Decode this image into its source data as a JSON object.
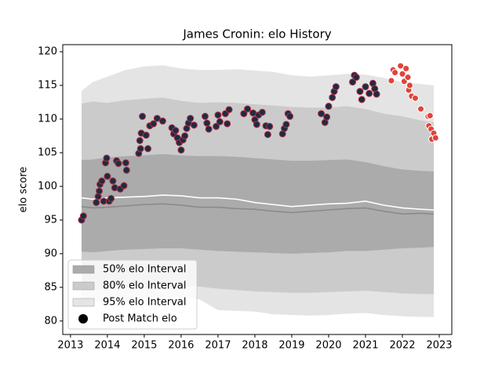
{
  "chart_data": {
    "type": "scatter",
    "title": "James Cronin: elo History",
    "ylabel": "elo score",
    "xlim": [
      2012.79,
      2023.34
    ],
    "ylim": [
      78.0,
      121.05
    ],
    "xticks": [
      2013,
      2014,
      2015,
      2016,
      2017,
      2018,
      2019,
      2020,
      2021,
      2022,
      2023
    ],
    "yticks": [
      80,
      85,
      90,
      95,
      100,
      105,
      110,
      115,
      120
    ],
    "legend": "lower left",
    "band_x": [
      2013.3,
      2013.6,
      2014,
      2014.5,
      2015,
      2015.5,
      2016,
      2016.5,
      2017,
      2017.5,
      2018,
      2018.5,
      2019,
      2019.5,
      2020,
      2020.5,
      2021,
      2021.5,
      2022,
      2022.5,
      2022.85
    ],
    "bands": [
      {
        "name": "50% elo Interval",
        "color": "#ababab",
        "upper": [
          103.9,
          104.0,
          104.3,
          104.5,
          104.6,
          104.8,
          104.6,
          104.5,
          104.5,
          104.4,
          104.2,
          104.0,
          103.8,
          103.8,
          103.9,
          104.0,
          103.6,
          103.0,
          102.5,
          102.3,
          102.2
        ],
        "lower": [
          90.3,
          90.2,
          90.4,
          90.6,
          90.7,
          90.8,
          90.8,
          90.6,
          90.4,
          90.3,
          90.2,
          90.1,
          90.0,
          90.1,
          90.2,
          90.4,
          90.4,
          90.6,
          90.8,
          90.9,
          91.0
        ]
      },
      {
        "name": "80% elo Interval",
        "color": "#cbcbcb",
        "upper": [
          112.3,
          112.6,
          112.4,
          112.8,
          113.0,
          113.2,
          112.7,
          112.4,
          112.5,
          112.4,
          112.2,
          112.0,
          111.8,
          111.7,
          111.7,
          111.9,
          111.5,
          110.8,
          110.4,
          109.8,
          109.5
        ],
        "lower": [
          84.6,
          84.6,
          84.8,
          85.0,
          85.1,
          85.3,
          85.2,
          85.1,
          84.8,
          84.6,
          84.4,
          84.3,
          84.2,
          84.2,
          84.3,
          84.4,
          84.5,
          84.3,
          84.1,
          84.0,
          84.0
        ]
      },
      {
        "name": "95% elo Interval",
        "color": "#e4e4e4",
        "upper": [
          114.2,
          115.5,
          116.3,
          117.3,
          117.8,
          118.0,
          117.5,
          117.3,
          117.3,
          117.4,
          117.2,
          117.0,
          116.5,
          116.3,
          116.5,
          116.7,
          116.6,
          116.1,
          115.5,
          115.2,
          115.0
        ],
        "lower": [
          83.1,
          82.8,
          82.9,
          83.2,
          83.4,
          83.6,
          83.6,
          83.2,
          81.6,
          81.5,
          81.4,
          81.0,
          80.9,
          80.8,
          80.9,
          81.1,
          81.2,
          80.9,
          80.7,
          80.6,
          80.6
        ]
      }
    ],
    "lines": [
      {
        "color": "#ffffff",
        "values": [
          98.3,
          98.1,
          98.3,
          98.4,
          98.5,
          98.7,
          98.6,
          98.3,
          98.3,
          98.1,
          97.6,
          97.3,
          97.0,
          97.2,
          97.4,
          97.5,
          97.8,
          97.2,
          96.8,
          96.6,
          96.5
        ]
      },
      {
        "color": "#8a8a8a",
        "values": [
          97.0,
          96.8,
          96.9,
          97.1,
          97.3,
          97.4,
          97.2,
          96.9,
          96.9,
          96.7,
          96.6,
          96.3,
          96.1,
          96.3,
          96.5,
          96.7,
          96.8,
          96.3,
          95.9,
          96.0,
          95.9
        ]
      }
    ],
    "series": [
      {
        "name": "Post Match elo",
        "color": "#1f2b44",
        "edge": "#b03040",
        "legend_color": "#000000",
        "x": [
          2013.3,
          2013.35,
          2013.7,
          2013.75,
          2013.78,
          2013.8,
          2013.85,
          2013.9,
          2013.95,
          2013.98,
          2014.0,
          2014.05,
          2014.1,
          2014.15,
          2014.2,
          2014.25,
          2014.3,
          2014.35,
          2014.45,
          2014.5,
          2014.52,
          2014.85,
          2014.9,
          2014.88,
          2014.92,
          2014.95,
          2015.05,
          2015.1,
          2015.15,
          2015.25,
          2015.35,
          2015.5,
          2015.75,
          2015.8,
          2015.85,
          2015.9,
          2015.95,
          2016.0,
          2016.05,
          2016.1,
          2016.15,
          2016.2,
          2016.25,
          2016.35,
          2016.65,
          2016.7,
          2016.75,
          2016.95,
          2017.0,
          2017.05,
          2017.2,
          2017.25,
          2017.3,
          2017.7,
          2017.8,
          2017.95,
          2018.0,
          2018.05,
          2018.1,
          2018.2,
          2018.3,
          2018.35,
          2018.4,
          2018.75,
          2018.8,
          2018.85,
          2018.9,
          2018.95,
          2019.8,
          2019.9,
          2019.95,
          2020.0,
          2020.1,
          2020.15,
          2020.2,
          2020.65,
          2020.7,
          2020.75,
          2020.85,
          2020.9,
          2021.0,
          2021.1,
          2021.2,
          2021.25,
          2021.3
        ],
        "values": [
          95.0,
          95.6,
          97.6,
          98.5,
          99.3,
          100.3,
          100.8,
          97.8,
          103.5,
          104.2,
          101.5,
          97.8,
          98.2,
          100.8,
          99.8,
          103.8,
          103.4,
          99.6,
          100.1,
          103.5,
          102.4,
          104.9,
          105.6,
          106.8,
          107.9,
          110.4,
          107.6,
          105.6,
          109.0,
          109.3,
          110.1,
          109.7,
          108.7,
          107.8,
          108.3,
          107.2,
          106.5,
          105.4,
          106.9,
          107.5,
          108.6,
          109.4,
          110.1,
          109.1,
          110.4,
          109.4,
          108.5,
          108.9,
          110.6,
          109.6,
          110.8,
          109.3,
          111.4,
          110.8,
          111.5,
          110.9,
          109.9,
          109.2,
          110.6,
          111.0,
          109.0,
          107.7,
          108.9,
          107.8,
          108.6,
          109.2,
          110.8,
          110.4,
          110.8,
          109.5,
          110.3,
          111.9,
          113.2,
          114.1,
          114.8,
          115.5,
          116.5,
          116.2,
          114.1,
          112.9,
          114.8,
          113.8,
          115.3,
          114.5,
          113.7
        ]
      },
      {
        "color": "#e0443a",
        "edge": "#ffffff",
        "x": [
          2021.7,
          2021.75,
          2021.8,
          2021.95,
          2022.0,
          2022.05,
          2022.1,
          2022.15,
          2022.17,
          2022.2,
          2022.25,
          2022.35,
          2022.5,
          2022.7,
          2022.75,
          2022.72,
          2022.78,
          2022.8,
          2022.85,
          2022.9
        ],
        "values": [
          115.7,
          117.3,
          116.9,
          117.9,
          116.7,
          115.6,
          117.5,
          116.2,
          114.3,
          115.0,
          113.4,
          113.1,
          111.5,
          110.4,
          110.5,
          109.0,
          108.5,
          107.0,
          107.9,
          107.2
        ]
      }
    ]
  }
}
